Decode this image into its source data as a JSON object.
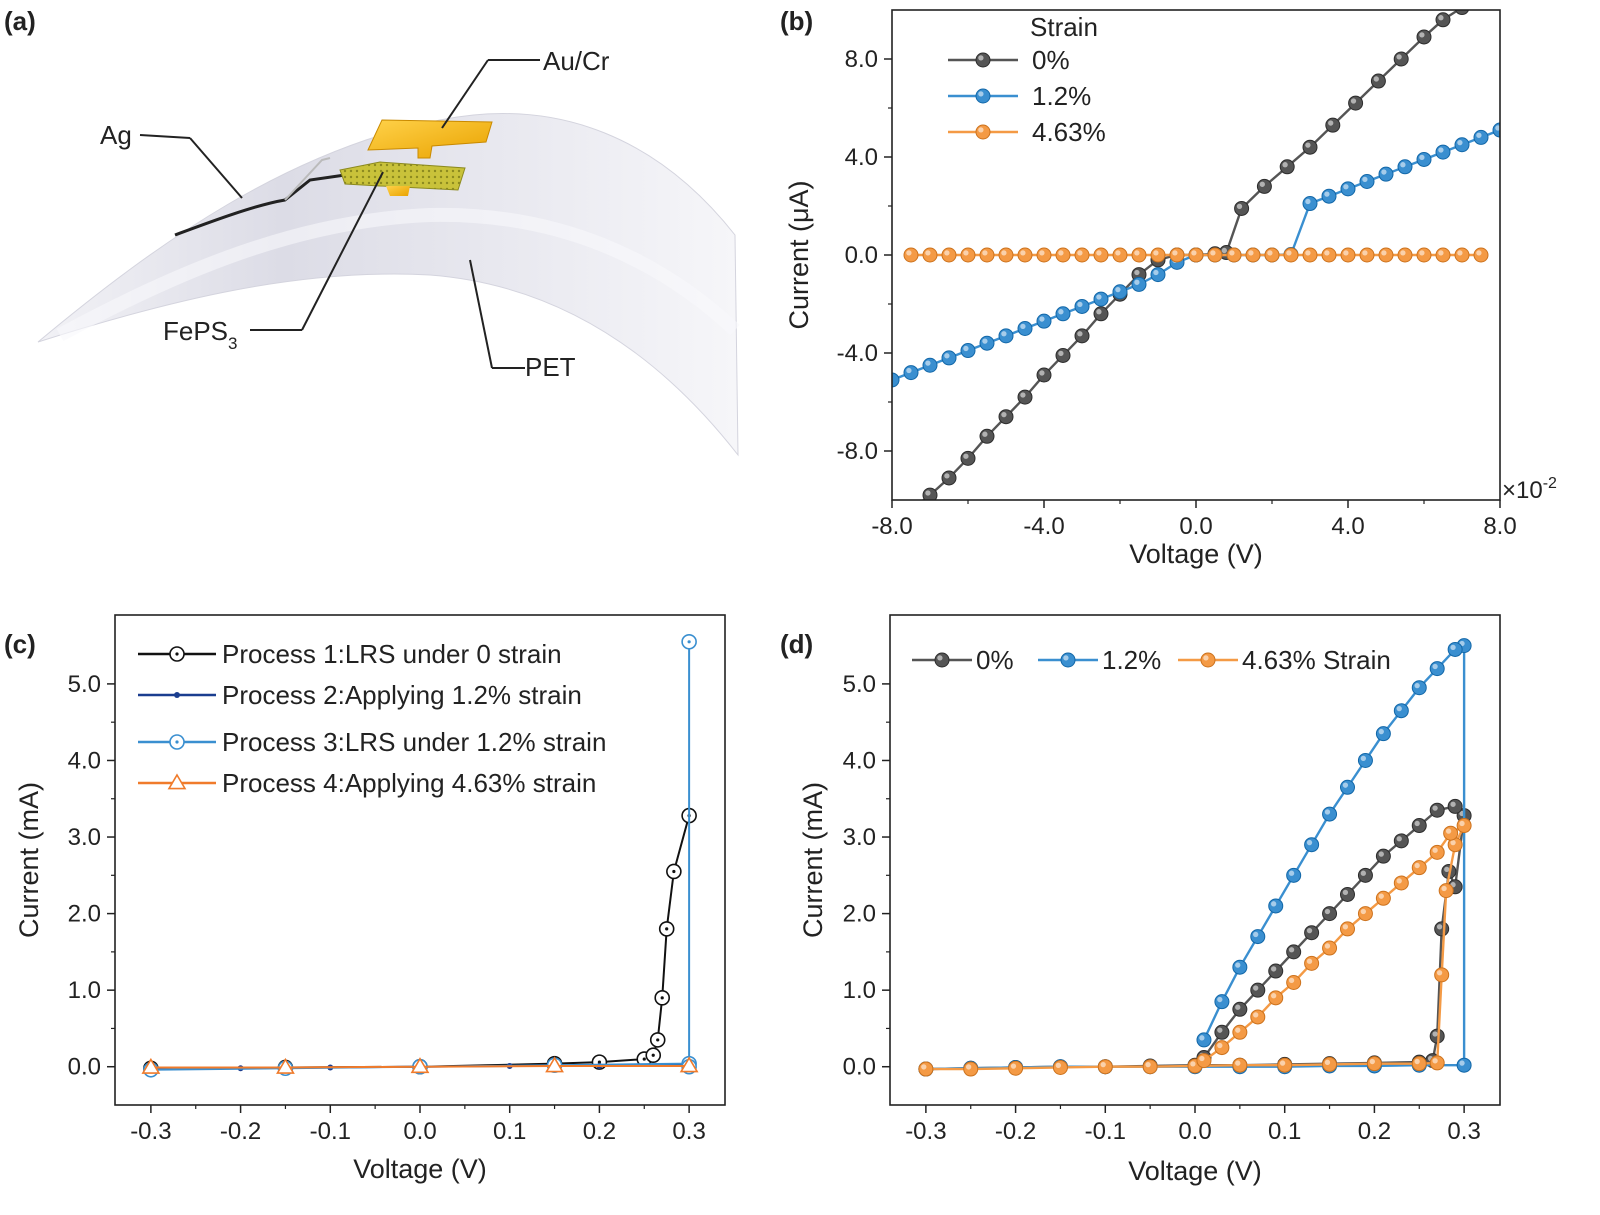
{
  "figure": {
    "panel_labels": [
      "(a)",
      "(b)",
      "(c)",
      "(d)"
    ],
    "schematic": {
      "labels": {
        "ag": "Ag",
        "aucr": "Au/Cr",
        "feps3": "FePS",
        "feps3_sub": "3",
        "pet": "PET"
      },
      "colors": {
        "substrate": "#e4e4ec",
        "electrode": "#f4b400",
        "flake": "#b5b32a"
      }
    }
  },
  "chart_data": [
    {
      "id": "b",
      "type": "line",
      "xlabel": "Voltage (V)",
      "ylabel": "Current (μA)",
      "x_multiplier": "×10",
      "x_multiplier_exp": "-2",
      "xlim": [
        -8,
        8
      ],
      "ylim": [
        -10,
        10
      ],
      "xticks": [
        -8,
        -4,
        0,
        4,
        8
      ],
      "xtick_labels": [
        "-8.0",
        "-4.0",
        "0.0",
        "4.0",
        "8.0"
      ],
      "yticks": [
        -8,
        -4,
        0,
        4,
        8
      ],
      "ytick_labels": [
        "-8.0",
        "-4.0",
        "0.0",
        "4.0",
        "8.0"
      ],
      "legend": {
        "title": "Strain",
        "placement": "top-left"
      },
      "series": [
        {
          "name": "0%",
          "color": "#555555",
          "x": [
            -7.5,
            -7.0,
            -6.5,
            -6.0,
            -5.5,
            -5.0,
            -4.5,
            -4.0,
            -3.5,
            -3.0,
            -2.5,
            -2.0,
            -1.5,
            -1.0,
            -0.5,
            0.0,
            0.5,
            0.8,
            1.2,
            1.8,
            2.4,
            3.0,
            3.6,
            4.2,
            4.8,
            5.4,
            6.0,
            6.5,
            7.0
          ],
          "y": [
            -10.4,
            -9.8,
            -9.1,
            -8.3,
            -7.4,
            -6.6,
            -5.8,
            -4.9,
            -4.1,
            -3.3,
            -2.4,
            -1.6,
            -0.8,
            -0.2,
            0.0,
            0.0,
            0.05,
            0.1,
            1.9,
            2.8,
            3.6,
            4.4,
            5.3,
            6.2,
            7.1,
            8.0,
            8.9,
            9.6,
            10.1
          ]
        },
        {
          "name": "1.2%",
          "color": "#3a8fd0",
          "x": [
            -8.0,
            -7.5,
            -7.0,
            -6.5,
            -6.0,
            -5.5,
            -5.0,
            -4.5,
            -4.0,
            -3.5,
            -3.0,
            -2.5,
            -2.0,
            -1.5,
            -1.0,
            -0.5,
            0.0,
            0.5,
            1.0,
            1.5,
            2.0,
            2.5,
            3.0,
            3.5,
            4.0,
            4.5,
            5.0,
            5.5,
            6.0,
            6.5,
            7.0,
            7.5,
            8.0
          ],
          "y": [
            -5.1,
            -4.8,
            -4.5,
            -4.2,
            -3.9,
            -3.6,
            -3.3,
            -3.0,
            -2.7,
            -2.4,
            -2.1,
            -1.8,
            -1.5,
            -1.2,
            -0.8,
            -0.3,
            0.0,
            0.0,
            0.0,
            0.0,
            0.0,
            0.02,
            2.1,
            2.4,
            2.7,
            3.0,
            3.3,
            3.6,
            3.9,
            4.2,
            4.5,
            4.8,
            5.1
          ]
        },
        {
          "name": "4.63%",
          "color": "#f49a45",
          "x": [
            -7.5,
            -7.0,
            -6.5,
            -6.0,
            -5.5,
            -5.0,
            -4.5,
            -4.0,
            -3.5,
            -3.0,
            -2.5,
            -2.0,
            -1.5,
            -1.0,
            -0.5,
            0.0,
            0.5,
            1.0,
            1.5,
            2.0,
            2.5,
            3.0,
            3.5,
            4.0,
            4.5,
            5.0,
            5.5,
            6.0,
            6.5,
            7.0,
            7.5
          ],
          "y": [
            0,
            0,
            0,
            0,
            0,
            0,
            0,
            0,
            0,
            0,
            0,
            0,
            0,
            0,
            0,
            0,
            0,
            0,
            0,
            0,
            0,
            0,
            0,
            0,
            0,
            0,
            0,
            0,
            0,
            0,
            0
          ]
        }
      ]
    },
    {
      "id": "c",
      "type": "line",
      "xlabel": "Voltage (V)",
      "ylabel": "Current (mA)",
      "xlim": [
        -0.34,
        0.34
      ],
      "ylim": [
        -0.5,
        5.9
      ],
      "xticks": [
        -0.3,
        -0.2,
        -0.1,
        0.0,
        0.1,
        0.2,
        0.3
      ],
      "xtick_labels": [
        "-0.3",
        "-0.2",
        "-0.1",
        "0.0",
        "0.1",
        "0.2",
        "0.3"
      ],
      "yticks": [
        0,
        1,
        2,
        3,
        4,
        5
      ],
      "ytick_labels": [
        "0.0",
        "1.0",
        "2.0",
        "3.0",
        "4.0",
        "5.0"
      ],
      "legend": {
        "placement": "top-left"
      },
      "series": [
        {
          "name": "Process 1:LRS under 0 strain",
          "color": "#111111",
          "marker": "circle-dot",
          "x": [
            -0.3,
            -0.15,
            0.0,
            0.15,
            0.2,
            0.25,
            0.26,
            0.265,
            0.27,
            0.275,
            0.283,
            0.3
          ],
          "y": [
            -0.02,
            -0.01,
            0.0,
            0.04,
            0.06,
            0.1,
            0.15,
            0.35,
            0.9,
            1.8,
            2.55,
            3.28
          ]
        },
        {
          "name": "Process 2:Applying 1.2% strain",
          "color": "#1a3d8f",
          "marker": "small-dot",
          "x": [
            -0.3,
            -0.2,
            -0.1,
            0.0,
            0.1,
            0.2,
            0.3
          ],
          "y": [
            -0.02,
            -0.02,
            -0.01,
            0.0,
            0.01,
            0.01,
            0.02
          ]
        },
        {
          "name": "Process 3:LRS under 1.2% strain",
          "color": "#3a8fd0",
          "marker": "circle-dot",
          "x": [
            -0.3,
            -0.15,
            0.0,
            0.15,
            0.3,
            0.3,
            0.3
          ],
          "y": [
            -0.04,
            -0.02,
            0.0,
            0.02,
            0.04,
            5.55,
            0.0
          ]
        },
        {
          "name": "Process 4:Applying 4.63% strain",
          "color": "#f07b2b",
          "marker": "triangle",
          "x": [
            -0.3,
            -0.15,
            0.0,
            0.15,
            0.3
          ],
          "y": [
            -0.01,
            -0.01,
            0.0,
            0.01,
            0.01
          ]
        }
      ]
    },
    {
      "id": "d",
      "type": "line",
      "xlabel": "Voltage (V)",
      "ylabel": "Current (mA)",
      "xlim": [
        -0.34,
        0.34
      ],
      "ylim": [
        -0.5,
        5.9
      ],
      "xticks": [
        -0.3,
        -0.2,
        -0.1,
        0.0,
        0.1,
        0.2,
        0.3
      ],
      "xtick_labels": [
        "-0.3",
        "-0.2",
        "-0.1",
        "0.0",
        "0.1",
        "0.2",
        "0.3"
      ],
      "yticks": [
        0,
        1,
        2,
        3,
        4,
        5
      ],
      "ytick_labels": [
        "0.0",
        "1.0",
        "2.0",
        "3.0",
        "4.0",
        "5.0"
      ],
      "legend": {
        "placement": "top",
        "suffix": "Strain"
      },
      "series": [
        {
          "name": "0%",
          "color": "#555555",
          "x": [
            -0.3,
            -0.25,
            -0.2,
            -0.15,
            -0.1,
            -0.05,
            0.0,
            0.05,
            0.1,
            0.15,
            0.2,
            0.25,
            0.265,
            0.27,
            0.275,
            0.283,
            0.29,
            0.3,
            0.29,
            0.27,
            0.25,
            0.23,
            0.21,
            0.19,
            0.17,
            0.15,
            0.13,
            0.11,
            0.09,
            0.07,
            0.05,
            0.03,
            0.01
          ],
          "y": [
            -0.03,
            -0.02,
            -0.01,
            0.0,
            0.0,
            0.01,
            0.02,
            0.02,
            0.03,
            0.04,
            0.05,
            0.06,
            0.08,
            0.4,
            1.8,
            2.55,
            2.35,
            3.28,
            3.4,
            3.35,
            3.15,
            2.95,
            2.75,
            2.5,
            2.25,
            2.0,
            1.75,
            1.5,
            1.25,
            1.0,
            0.75,
            0.45,
            0.12
          ]
        },
        {
          "name": "1.2%",
          "color": "#3a8fd0",
          "x": [
            -0.3,
            -0.25,
            -0.2,
            -0.15,
            -0.1,
            -0.05,
            0.0,
            0.05,
            0.1,
            0.15,
            0.2,
            0.25,
            0.3,
            0.3,
            0.29,
            0.27,
            0.25,
            0.23,
            0.21,
            0.19,
            0.17,
            0.15,
            0.13,
            0.11,
            0.09,
            0.07,
            0.05,
            0.03,
            0.01
          ],
          "y": [
            -0.03,
            -0.02,
            -0.01,
            0.0,
            0.0,
            0.0,
            0.0,
            0.0,
            0.0,
            0.01,
            0.01,
            0.02,
            0.02,
            5.5,
            5.45,
            5.2,
            4.95,
            4.65,
            4.35,
            4.0,
            3.65,
            3.3,
            2.9,
            2.5,
            2.1,
            1.7,
            1.3,
            0.85,
            0.35
          ]
        },
        {
          "name": "4.63%",
          "color": "#f49a45",
          "x": [
            -0.3,
            -0.25,
            -0.2,
            -0.15,
            -0.1,
            -0.05,
            0.0,
            0.05,
            0.1,
            0.15,
            0.2,
            0.25,
            0.27,
            0.275,
            0.28,
            0.29,
            0.3,
            0.285,
            0.27,
            0.25,
            0.23,
            0.21,
            0.19,
            0.17,
            0.15,
            0.13,
            0.11,
            0.09,
            0.07,
            0.05,
            0.03,
            0.01
          ],
          "y": [
            -0.03,
            -0.03,
            -0.02,
            -0.01,
            0.0,
            0.0,
            0.01,
            0.02,
            0.02,
            0.03,
            0.04,
            0.04,
            0.05,
            1.2,
            2.3,
            2.9,
            3.15,
            3.05,
            2.8,
            2.6,
            2.4,
            2.2,
            2.0,
            1.8,
            1.55,
            1.35,
            1.1,
            0.9,
            0.65,
            0.45,
            0.25,
            0.08
          ]
        }
      ]
    }
  ]
}
